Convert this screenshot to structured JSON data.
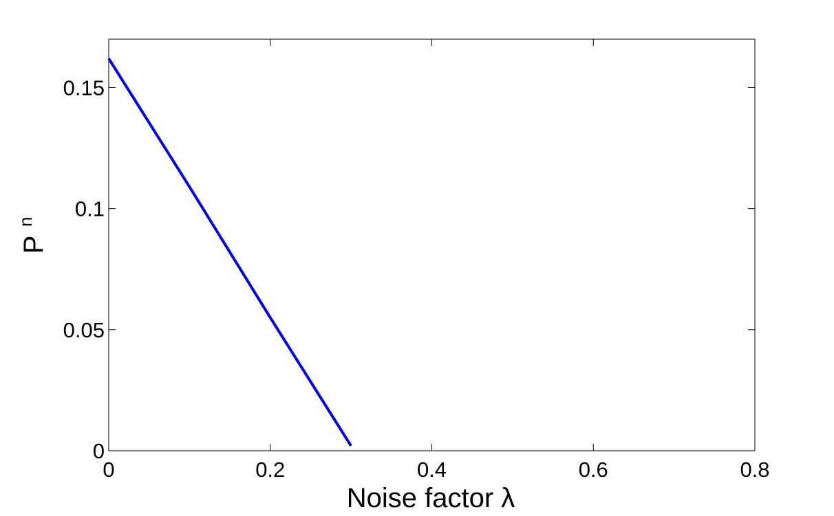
{
  "chart_data": {
    "type": "line",
    "xlabel": "Noise factor λ",
    "ylabel": "P",
    "ylabel_superscript": "n",
    "x": [
      0,
      0.1,
      0.2,
      0.3
    ],
    "values": [
      0.162,
      0.109,
      0.055,
      0.002
    ],
    "color": "#0000ee",
    "xlim": [
      0,
      0.8
    ],
    "xticks": [
      0,
      0.2,
      0.4,
      0.6,
      0.8
    ],
    "ylim": [
      0,
      0.17
    ],
    "yticks": [
      0,
      0.05,
      0.1,
      0.15
    ],
    "grid": false
  }
}
